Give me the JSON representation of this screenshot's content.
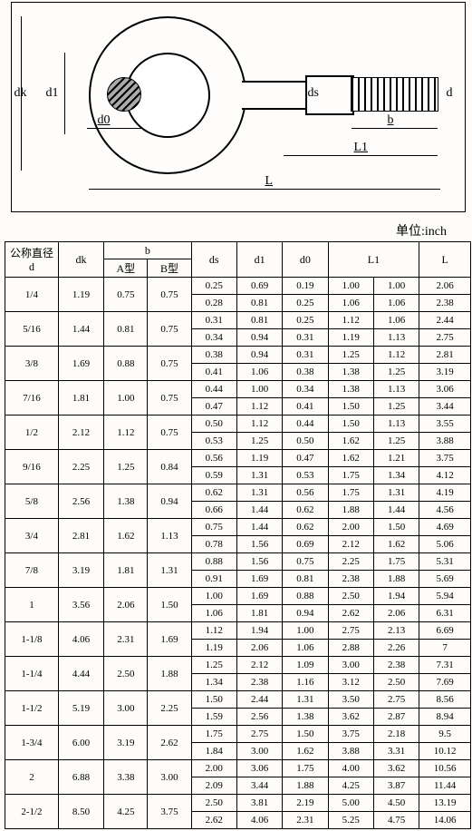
{
  "unit_label": "单位:inch",
  "diagram": {
    "dk": "dk",
    "d1": "d1",
    "d0": "d0",
    "ds": "ds",
    "d": "d",
    "b": "b",
    "L1": "L1",
    "L": "L"
  },
  "headers": {
    "d": "公称直径\nd",
    "dk": "dk",
    "b": "b",
    "bA": "A型",
    "bB": "B型",
    "ds": "ds",
    "d1": "d1",
    "d0": "d0",
    "L1": "L1",
    "L": "L"
  },
  "rows": [
    {
      "d": "1/4",
      "dk": "1.19",
      "bA": "0.75",
      "bB": "0.75",
      "cells": [
        [
          "0.25",
          "0.69",
          "0.19",
          "1.00",
          "1.00",
          "2.06"
        ],
        [
          "0.28",
          "0.81",
          "0.25",
          "1.06",
          "1.06",
          "2.38"
        ]
      ]
    },
    {
      "d": "5/16",
      "dk": "1.44",
      "bA": "0.81",
      "bB": "0.75",
      "cells": [
        [
          "0.31",
          "0.81",
          "0.25",
          "1.12",
          "1.06",
          "2.44"
        ],
        [
          "0.34",
          "0.94",
          "0.31",
          "1.19",
          "1.13",
          "2.75"
        ]
      ]
    },
    {
      "d": "3/8",
      "dk": "1.69",
      "bA": "0.88",
      "bB": "0.75",
      "cells": [
        [
          "0.38",
          "0.94",
          "0.31",
          "1.25",
          "1.12",
          "2.81"
        ],
        [
          "0.41",
          "1.06",
          "0.38",
          "1.38",
          "1.25",
          "3.19"
        ]
      ]
    },
    {
      "d": "7/16",
      "dk": "1.81",
      "bA": "1.00",
      "bB": "0.75",
      "cells": [
        [
          "0.44",
          "1.00",
          "0.34",
          "1.38",
          "1.13",
          "3.06"
        ],
        [
          "0.47",
          "1.12",
          "0.41",
          "1.50",
          "1.25",
          "3.44"
        ]
      ]
    },
    {
      "d": "1/2",
      "dk": "2.12",
      "bA": "1.12",
      "bB": "0.75",
      "cells": [
        [
          "0.50",
          "1.12",
          "0.44",
          "1.50",
          "1.13",
          "3.55"
        ],
        [
          "0.53",
          "1.25",
          "0.50",
          "1.62",
          "1.25",
          "3.88"
        ]
      ]
    },
    {
      "d": "9/16",
      "dk": "2.25",
      "bA": "1.25",
      "bB": "0.84",
      "cells": [
        [
          "0.56",
          "1.19",
          "0.47",
          "1.62",
          "1.21",
          "3.75"
        ],
        [
          "0.59",
          "1.31",
          "0.53",
          "1.75",
          "1.34",
          "4.12"
        ]
      ]
    },
    {
      "d": "5/8",
      "dk": "2.56",
      "bA": "1.38",
      "bB": "0.94",
      "cells": [
        [
          "0.62",
          "1.31",
          "0.56",
          "1.75",
          "1.31",
          "4.19"
        ],
        [
          "0.66",
          "1.44",
          "0.62",
          "1.88",
          "1.44",
          "4.56"
        ]
      ]
    },
    {
      "d": "3/4",
      "dk": "2.81",
      "bA": "1.62",
      "bB": "1.13",
      "cells": [
        [
          "0.75",
          "1.44",
          "0.62",
          "2.00",
          "1.50",
          "4.69"
        ],
        [
          "0.78",
          "1.56",
          "0.69",
          "2.12",
          "1.62",
          "5.06"
        ]
      ]
    },
    {
      "d": "7/8",
      "dk": "3.19",
      "bA": "1.81",
      "bB": "1.31",
      "cells": [
        [
          "0.88",
          "1.56",
          "0.75",
          "2.25",
          "1.75",
          "5.31"
        ],
        [
          "0.91",
          "1.69",
          "0.81",
          "2.38",
          "1.88",
          "5.69"
        ]
      ]
    },
    {
      "d": "1",
      "dk": "3.56",
      "bA": "2.06",
      "bB": "1.50",
      "cells": [
        [
          "1.00",
          "1.69",
          "0.88",
          "2.50",
          "1.94",
          "5.94"
        ],
        [
          "1.06",
          "1.81",
          "0.94",
          "2.62",
          "2.06",
          "6.31"
        ]
      ]
    },
    {
      "d": "1-1/8",
      "dk": "4.06",
      "bA": "2.31",
      "bB": "1.69",
      "cells": [
        [
          "1.12",
          "1.94",
          "1.00",
          "2.75",
          "2.13",
          "6.69"
        ],
        [
          "1.19",
          "2.06",
          "1.06",
          "2.88",
          "2.26",
          "7"
        ]
      ]
    },
    {
      "d": "1-1/4",
      "dk": "4.44",
      "bA": "2.50",
      "bB": "1.88",
      "cells": [
        [
          "1.25",
          "2.12",
          "1.09",
          "3.00",
          "2.38",
          "7.31"
        ],
        [
          "1.34",
          "2.38",
          "1.16",
          "3.12",
          "2.50",
          "7.69"
        ]
      ]
    },
    {
      "d": "1-1/2",
      "dk": "5.19",
      "bA": "3.00",
      "bB": "2.25",
      "cells": [
        [
          "1.50",
          "2.44",
          "1.31",
          "3.50",
          "2.75",
          "8.56"
        ],
        [
          "1.59",
          "2.56",
          "1.38",
          "3.62",
          "2.87",
          "8.94"
        ]
      ]
    },
    {
      "d": "1-3/4",
      "dk": "6.00",
      "bA": "3.19",
      "bB": "2.62",
      "cells": [
        [
          "1.75",
          "2.75",
          "1.50",
          "3.75",
          "2.18",
          "9.5"
        ],
        [
          "1.84",
          "3.00",
          "1.62",
          "3.88",
          "3.31",
          "10.12"
        ]
      ]
    },
    {
      "d": "2",
      "dk": "6.88",
      "bA": "3.38",
      "bB": "3.00",
      "cells": [
        [
          "2.00",
          "3.06",
          "1.75",
          "4.00",
          "3.62",
          "10.56"
        ],
        [
          "2.09",
          "3.44",
          "1.88",
          "4.25",
          "3.87",
          "11.44"
        ]
      ]
    },
    {
      "d": "2-1/2",
      "dk": "8.50",
      "bA": "4.25",
      "bB": "3.75",
      "cells": [
        [
          "2.50",
          "3.81",
          "2.19",
          "5.00",
          "4.50",
          "13.19"
        ],
        [
          "2.62",
          "4.06",
          "2.31",
          "5.25",
          "4.75",
          "14.06"
        ]
      ]
    }
  ]
}
